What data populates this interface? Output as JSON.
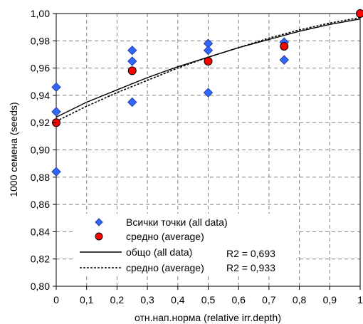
{
  "chart_data": {
    "type": "scatter",
    "xlabel": "отн.нап.норма (relative irr.depth)",
    "ylabel": "1000 семена (seeds)",
    "xlim": [
      0,
      1
    ],
    "ylim": [
      0.8,
      1.0
    ],
    "x_ticks": [
      "0",
      "0,1",
      "0,2",
      "0,3",
      "0,4",
      "0,5",
      "0,6",
      "0,7",
      "0,8",
      "0,9",
      "1"
    ],
    "y_ticks": [
      "0,80",
      "0,82",
      "0,84",
      "0,86",
      "0,88",
      "0,90",
      "0,92",
      "0,94",
      "0,96",
      "0,98",
      "1,00"
    ],
    "grid": true,
    "series": [
      {
        "name": "Всички точки (all data)",
        "marker": "diamond",
        "color": "#3366ff",
        "points": [
          [
            0,
            0.946
          ],
          [
            0,
            0.928
          ],
          [
            0,
            0.884
          ],
          [
            0.25,
            0.973
          ],
          [
            0.25,
            0.965
          ],
          [
            0.25,
            0.935
          ],
          [
            0.5,
            0.978
          ],
          [
            0.5,
            0.973
          ],
          [
            0.5,
            0.942
          ],
          [
            0.75,
            0.979
          ],
          [
            0.75,
            0.966
          ],
          [
            1,
            1.0
          ]
        ]
      },
      {
        "name": "средно (average)",
        "marker": "circle",
        "color": "#ff0000",
        "points": [
          [
            0,
            0.92
          ],
          [
            0.25,
            0.958
          ],
          [
            0.5,
            0.965
          ],
          [
            0.75,
            0.976
          ],
          [
            1,
            1.0
          ]
        ]
      }
    ],
    "trendlines": [
      {
        "name": "общо (all data)",
        "style": "solid",
        "r2_label": "R2 = 0,693",
        "points": [
          [
            0,
            0.924
          ],
          [
            0.1,
            0.935
          ],
          [
            0.2,
            0.944
          ],
          [
            0.3,
            0.953
          ],
          [
            0.4,
            0.961
          ],
          [
            0.5,
            0.968
          ],
          [
            0.6,
            0.975
          ],
          [
            0.7,
            0.981
          ],
          [
            0.8,
            0.987
          ],
          [
            0.9,
            0.992
          ],
          [
            1,
            0.996
          ]
        ]
      },
      {
        "name": "средно (average)",
        "style": "dashed",
        "r2_label": "R2 = 0,933",
        "points": [
          [
            0,
            0.921
          ],
          [
            0.1,
            0.932
          ],
          [
            0.2,
            0.942
          ],
          [
            0.3,
            0.951
          ],
          [
            0.4,
            0.96
          ],
          [
            0.5,
            0.968
          ],
          [
            0.6,
            0.975
          ],
          [
            0.7,
            0.982
          ],
          [
            0.8,
            0.988
          ],
          [
            0.9,
            0.993
          ],
          [
            1,
            0.997
          ]
        ]
      }
    ]
  }
}
